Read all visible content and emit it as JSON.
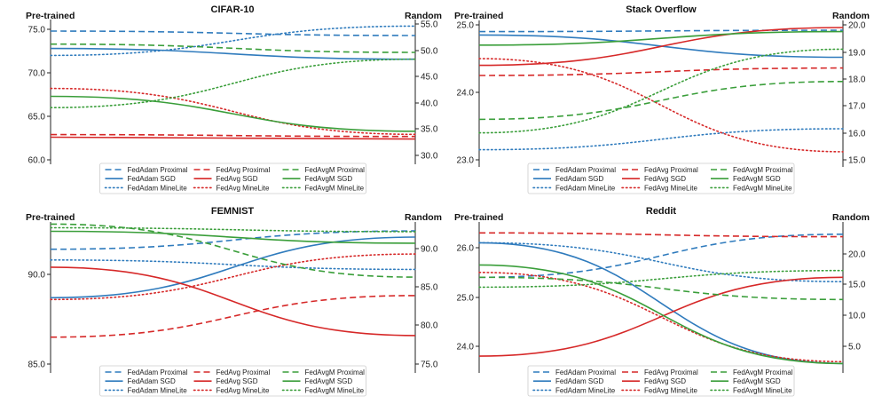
{
  "figure": {
    "left_axis_label": "Pre-trained",
    "right_axis_label": "Random"
  },
  "legend": {
    "columns": [
      [
        "FedAdam Proximal",
        "FedAdam SGD",
        "FedAdam MineLite"
      ],
      [
        "FedAvg Proximal",
        "FedAvg SGD",
        "FedAvg MineLite"
      ],
      [
        "FedAvgM Proximal",
        "FedAvgM SGD",
        "FedAvgM MineLite"
      ]
    ]
  },
  "styles": {
    "FedAdam": "#2f7bbd",
    "FedAvg": "#d62828",
    "FedAvgM": "#3a9e3a",
    "Proximal": "dashed",
    "SGD": "solid",
    "MineLite": "dotted"
  },
  "chart_data": [
    {
      "type": "line",
      "title": "CIFAR-10",
      "xlabel": "",
      "x": [
        "Pre-trained",
        "Random"
      ],
      "left_ylim": [
        60.0,
        75.0
      ],
      "left_ticks": [
        "60.0",
        "65.0",
        "70.0",
        "75.0"
      ],
      "right_ylim": [
        30.0,
        55.0
      ],
      "right_ticks": [
        "30.0",
        "35.0",
        "40.0",
        "45.0",
        "50.0",
        "55.0"
      ],
      "series": [
        {
          "name": "FedAdam Proximal",
          "left": 74.8,
          "right": 52.8
        },
        {
          "name": "FedAdam SGD",
          "left": 72.8,
          "right": 48.3
        },
        {
          "name": "FedAdam MineLite",
          "left": 72.0,
          "right": 54.6
        },
        {
          "name": "FedAvg Proximal",
          "left": 62.9,
          "right": 33.6
        },
        {
          "name": "FedAvg SGD",
          "left": 62.6,
          "right": 33.1
        },
        {
          "name": "FedAvg MineLite",
          "left": 68.2,
          "right": 34.0
        },
        {
          "name": "FedAvgM Proximal",
          "left": 73.3,
          "right": 49.6
        },
        {
          "name": "FedAvgM SGD",
          "left": 67.3,
          "right": 34.6
        },
        {
          "name": "FedAvgM MineLite",
          "left": 66.0,
          "right": 48.3
        }
      ]
    },
    {
      "type": "line",
      "title": "Stack Overflow",
      "xlabel": "",
      "x": [
        "Pre-trained",
        "Random"
      ],
      "left_ylim": [
        23.0,
        25.0
      ],
      "left_ticks": [
        "23.0",
        "24.0",
        "25.0"
      ],
      "right_ylim": [
        15.0,
        20.0
      ],
      "right_ticks": [
        "15.0",
        "16.0",
        "17.0",
        "18.0",
        "19.0",
        "20.0"
      ],
      "series": [
        {
          "name": "FedAdam Proximal",
          "left": 24.9,
          "right": 19.8
        },
        {
          "name": "FedAdam SGD",
          "left": 24.85,
          "right": 18.8
        },
        {
          "name": "FedAdam MineLite",
          "left": 23.15,
          "right": 16.15
        },
        {
          "name": "FedAvg Proximal",
          "left": 24.25,
          "right": 18.4
        },
        {
          "name": "FedAvg SGD",
          "left": 24.4,
          "right": 19.9
        },
        {
          "name": "FedAvg MineLite",
          "left": 24.5,
          "right": 15.3
        },
        {
          "name": "FedAvgM Proximal",
          "left": 23.6,
          "right": 17.9
        },
        {
          "name": "FedAvgM SGD",
          "left": 24.7,
          "right": 19.75
        },
        {
          "name": "FedAvgM MineLite",
          "left": 23.4,
          "right": 19.1
        }
      ]
    },
    {
      "type": "line",
      "title": "FEMNIST",
      "xlabel": "",
      "x": [
        "Pre-trained",
        "Random"
      ],
      "left_ylim": [
        85.0,
        90.0
      ],
      "left_ticks": [
        "85.0",
        "90.0"
      ],
      "right_ylim": [
        75.0,
        90.0
      ],
      "right_ticks": [
        "75.0",
        "80.0",
        "85.0",
        "90.0"
      ],
      "series": [
        {
          "name": "FedAdam Proximal",
          "left": 91.4,
          "right": 92.3
        },
        {
          "name": "FedAdam SGD",
          "left": 88.7,
          "right": 91.5
        },
        {
          "name": "FedAdam MineLite",
          "left": 90.8,
          "right": 87.3
        },
        {
          "name": "FedAvg Proximal",
          "left": 86.5,
          "right": 83.9
        },
        {
          "name": "FedAvg SGD",
          "left": 90.4,
          "right": 78.7
        },
        {
          "name": "FedAvg MineLite",
          "left": 88.6,
          "right": 89.3
        },
        {
          "name": "FedAvgM Proximal",
          "left": 92.8,
          "right": 86.3
        },
        {
          "name": "FedAvgM SGD",
          "left": 92.4,
          "right": 90.7
        },
        {
          "name": "FedAvgM MineLite",
          "left": 92.6,
          "right": 92.2
        }
      ]
    },
    {
      "type": "line",
      "title": "Reddit",
      "xlabel": "",
      "x": [
        "Pre-trained",
        "Random"
      ],
      "left_ylim": [
        24.0,
        26.0
      ],
      "left_ticks": [
        "24.0",
        "25.0",
        "26.0"
      ],
      "right_ylim": [
        5.0,
        20.0
      ],
      "right_ticks": [
        "5.0",
        "10.0",
        "15.0",
        "20.0"
      ],
      "series": [
        {
          "name": "FedAdam Proximal",
          "left": 25.4,
          "right": 23.2
        },
        {
          "name": "FedAdam SGD",
          "left": 26.1,
          "right": 2.2
        },
        {
          "name": "FedAdam MineLite",
          "left": 26.1,
          "right": 15.5
        },
        {
          "name": "FedAvg Proximal",
          "left": 26.3,
          "right": 22.8
        },
        {
          "name": "FedAvg SGD",
          "left": 23.8,
          "right": 16.2
        },
        {
          "name": "FedAvg MineLite",
          "left": 25.5,
          "right": 2.5
        },
        {
          "name": "FedAvgM Proximal",
          "left": 25.4,
          "right": 12.6
        },
        {
          "name": "FedAvgM SGD",
          "left": 25.65,
          "right": 2.2
        },
        {
          "name": "FedAvgM MineLite",
          "left": 25.2,
          "right": 17.3
        }
      ]
    }
  ]
}
